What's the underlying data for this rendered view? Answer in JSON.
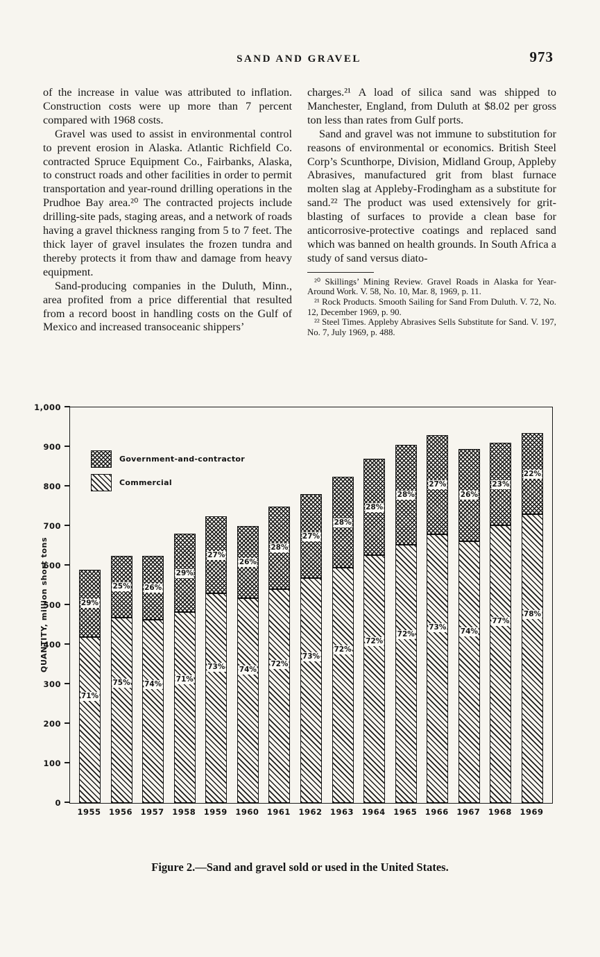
{
  "page": {
    "header": "SAND AND GRAVEL",
    "page_number": "973"
  },
  "left_column": {
    "paragraphs": [
      "of the increase in value was attributed to inflation. Construction costs were up more than 7 percent compared with 1968 costs.",
      "Gravel was used to assist in environmental control to prevent erosion in Alaska. Atlantic Richfield Co. contracted Spruce Equipment Co., Fairbanks, Alaska, to construct roads and other facilities in order to permit transportation and year-round drilling operations in the Prudhoe Bay area.²⁰ The contracted projects include drilling-site pads, staging areas, and a network of roads having a gravel thickness ranging from 5 to 7 feet. The thick layer of gravel insulates the frozen tundra and thereby protects it from thaw and damage from heavy equipment.",
      "Sand-producing companies in the Duluth, Minn., area profited from a price differential that resulted from a record boost in handling costs on the Gulf of Mexico and increased transoceanic shippers’"
    ]
  },
  "right_column": {
    "paragraphs": [
      "charges.²¹ A load of silica sand was shipped to Manchester, England, from Duluth at $8.02 per gross ton less than rates from Gulf ports.",
      "Sand and gravel was not immune to substitution for reasons of environmental or economics. British Steel Corp’s Scunthorpe, Division, Midland Group, Appleby Abrasives, manufactured grit from blast furnace molten slag at Appleby-Frodingham as a substitute for sand.²² The product was used extensively for grit-blasting of surfaces to provide a clean base for anticorrosive-protective coatings and replaced sand which was banned on health grounds. In South Africa a study of sand versus diato-"
    ],
    "footnotes": [
      "²⁰ Skillings’ Mining Review. Gravel Roads in Alaska for Year-Around Work. V. 58, No. 10, Mar. 8, 1969, p. 11.",
      "²¹ Rock Products. Smooth Sailing for Sand From Duluth. V. 72, No. 12, December 1969, p. 90.",
      "²² Steel Times. Appleby Abrasives Sells Substitute for Sand. V. 197, No. 7, July 1969, p. 488."
    ]
  },
  "chart_data": {
    "type": "bar",
    "stacked": true,
    "title": "Figure 2.—Sand and gravel sold or used in the United States.",
    "ylabel": "QUANTITY, million short tons",
    "ylim": [
      0,
      1000
    ],
    "ytick_interval": 100,
    "ytick_labels": [
      "0",
      "100",
      "200",
      "300",
      "400",
      "500",
      "600",
      "700",
      "800",
      "900",
      "1,000"
    ],
    "grid": false,
    "legend_position": "top-left",
    "categories": [
      "1955",
      "1956",
      "1957",
      "1958",
      "1959",
      "1960",
      "1961",
      "1962",
      "1963",
      "1964",
      "1965",
      "1966",
      "1967",
      "1968",
      "1969"
    ],
    "totals": [
      590,
      625,
      625,
      680,
      725,
      700,
      750,
      780,
      825,
      870,
      905,
      930,
      895,
      910,
      935
    ],
    "series": [
      {
        "name": "Commercial",
        "pattern": "diagonal-hatch",
        "percent": [
          71,
          75,
          74,
          71,
          73,
          74,
          72,
          73,
          72,
          72,
          72,
          73,
          74,
          77,
          78
        ],
        "values": [
          419,
          469,
          463,
          483,
          529,
          518,
          540,
          569,
          594,
          626,
          652,
          679,
          662,
          701,
          729
        ]
      },
      {
        "name": "Government-and-contractor",
        "pattern": "crosshatch",
        "percent": [
          29,
          25,
          26,
          29,
          27,
          26,
          28,
          27,
          28,
          28,
          28,
          27,
          26,
          23,
          22
        ],
        "values": [
          171,
          156,
          162,
          197,
          196,
          182,
          210,
          211,
          231,
          244,
          253,
          251,
          233,
          209,
          206
        ]
      }
    ]
  }
}
